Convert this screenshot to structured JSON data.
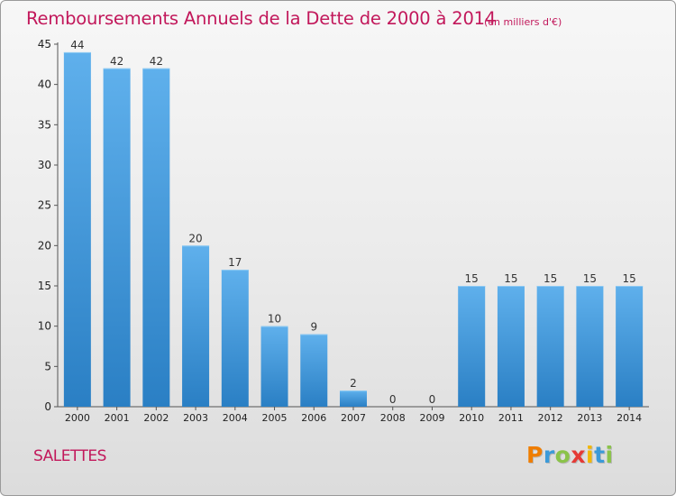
{
  "chart_data": {
    "type": "bar",
    "title": "Remboursements Annuels de la Dette de 2000 à 2014",
    "subtitle": "(en milliers d'€)",
    "categories": [
      "2000",
      "2001",
      "2002",
      "2003",
      "2004",
      "2005",
      "2006",
      "2007",
      "2008",
      "2009",
      "2010",
      "2011",
      "2012",
      "2013",
      "2014"
    ],
    "values": [
      44,
      42,
      42,
      20,
      17,
      10,
      9,
      2,
      0,
      0,
      15,
      15,
      15,
      15,
      15
    ],
    "xlabel": "",
    "ylabel": "",
    "ylim": [
      0,
      45
    ],
    "yticks": [
      0,
      5,
      10,
      15,
      20,
      25,
      30,
      35,
      40,
      45
    ],
    "grid": false,
    "bar_color_top": "#5fb0ec",
    "bar_color_bottom": "#2a7fc4"
  },
  "footer": {
    "commune": "SALETTES",
    "logo_letters": [
      "P",
      "r",
      "o",
      "x",
      "i",
      "t",
      "i"
    ],
    "logo_colors": [
      "#ef7d00",
      "#3b9ad9",
      "#8bc34a",
      "#e53935",
      "#f2b705",
      "#3b9ad9",
      "#8bc34a"
    ]
  },
  "colors": {
    "title": "#c2185b",
    "axis": "#555555"
  }
}
